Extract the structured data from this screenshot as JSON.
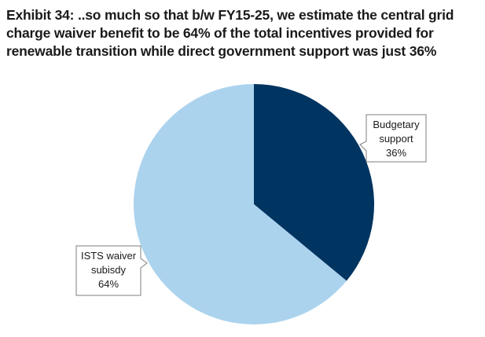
{
  "header": {
    "title": "Exhibit 34: ..so much so that b/w FY15-25, we estimate the central grid charge waiver benefit to be 64% of the total incentives provided for renewable transition while direct government support was just 36%"
  },
  "chart_data": {
    "type": "pie",
    "title": "Exhibit 34: ..so much so that b/w FY15-25, we estimate the central grid charge waiver benefit to be 64% of the total incentives provided for renewable transition while direct government support was just 36%",
    "slices": [
      {
        "label_lines": [
          "Budgetary",
          "support",
          "36%"
        ],
        "value": 36,
        "color": "#003461"
      },
      {
        "label_lines": [
          "ISTS waiver",
          "subisdy",
          "64%"
        ],
        "value": 64,
        "color": "#acd3ee"
      }
    ],
    "start_angle_deg": 0,
    "direction": "clockwise",
    "legend": "none"
  }
}
